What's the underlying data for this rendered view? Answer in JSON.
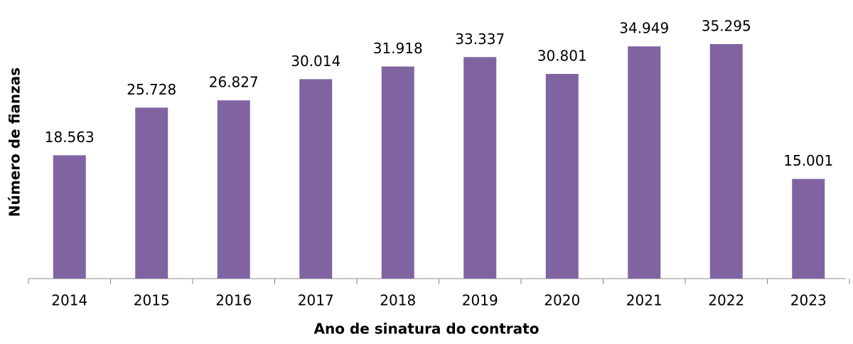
{
  "chart_data": {
    "type": "bar",
    "x_label": "Ano de sinatura do contrato",
    "y_label": "Número de  fianzas",
    "categories": [
      "2014",
      "2015",
      "2016",
      "2017",
      "2018",
      "2019",
      "2020",
      "2021",
      "2022",
      "2023"
    ],
    "values": [
      18563,
      25728,
      26827,
      30014,
      31918,
      33337,
      30801,
      34949,
      35295,
      15001
    ],
    "value_labels": [
      "18.563",
      "25.728",
      "26.827",
      "30.014",
      "31.918",
      "33.337",
      "30.801",
      "34.949",
      "35.295",
      "15.001"
    ],
    "color": "#8064a2",
    "ylim": [
      0,
      40000
    ]
  }
}
